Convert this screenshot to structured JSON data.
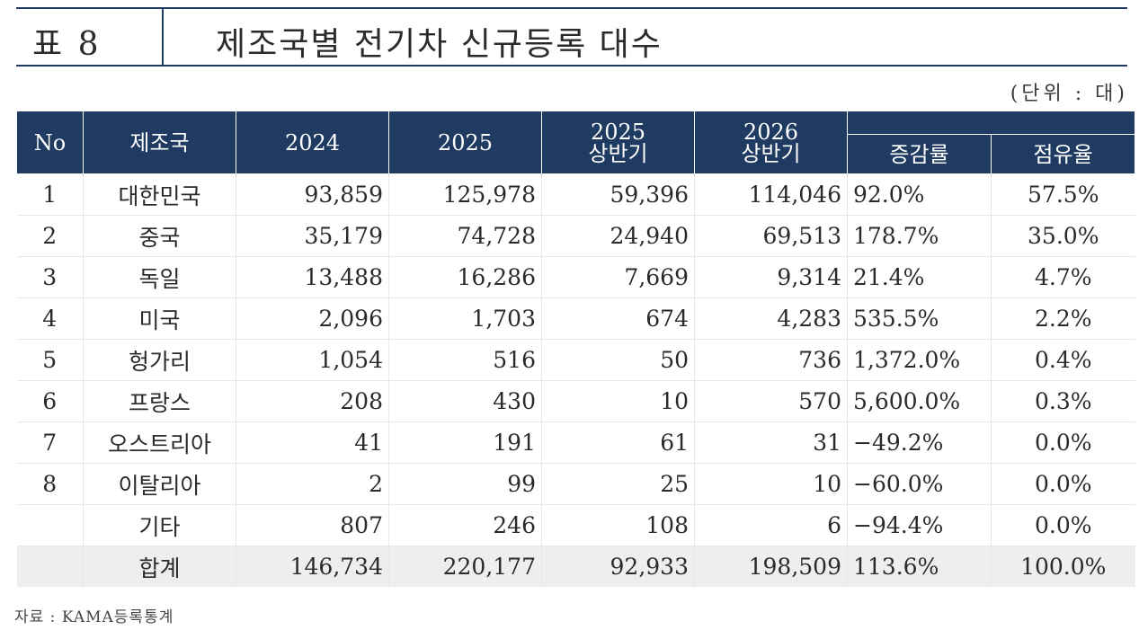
{
  "title": {
    "number": "표 8",
    "text": "제조국별 전기차 신규등록 대수"
  },
  "unit": "(단위 : 대)",
  "headers": {
    "no": "No",
    "maker": "제조국",
    "y2024": "2024",
    "y2025": "2025",
    "h2025_line1": "2025",
    "h2025_line2": "상반기",
    "h2026_line1": "2026",
    "h2026_line2": "상반기",
    "growth": "증감률",
    "share": "점유율"
  },
  "rows": [
    {
      "no": "1",
      "country": "대한민국",
      "y2024": "93,859",
      "y2025": "125,978",
      "h2025": "59,396",
      "h2026": "114,046",
      "growth": "92.0%",
      "share": "57.5%"
    },
    {
      "no": "2",
      "country": "중국",
      "y2024": "35,179",
      "y2025": "74,728",
      "h2025": "24,940",
      "h2026": "69,513",
      "growth": "178.7%",
      "share": "35.0%"
    },
    {
      "no": "3",
      "country": "독일",
      "y2024": "13,488",
      "y2025": "16,286",
      "h2025": "7,669",
      "h2026": "9,314",
      "growth": "21.4%",
      "share": "4.7%"
    },
    {
      "no": "4",
      "country": "미국",
      "y2024": "2,096",
      "y2025": "1,703",
      "h2025": "674",
      "h2026": "4,283",
      "growth": "535.5%",
      "share": "2.2%"
    },
    {
      "no": "5",
      "country": "헝가리",
      "y2024": "1,054",
      "y2025": "516",
      "h2025": "50",
      "h2026": "736",
      "growth": "1,372.0%",
      "share": "0.4%"
    },
    {
      "no": "6",
      "country": "프랑스",
      "y2024": "208",
      "y2025": "430",
      "h2025": "10",
      "h2026": "570",
      "growth": "5,600.0%",
      "share": "0.3%"
    },
    {
      "no": "7",
      "country": "오스트리아",
      "y2024": "41",
      "y2025": "191",
      "h2025": "61",
      "h2026": "31",
      "growth": "−49.2%",
      "share": "0.0%"
    },
    {
      "no": "8",
      "country": "이탈리아",
      "y2024": "2",
      "y2025": "99",
      "h2025": "25",
      "h2026": "10",
      "growth": "−60.0%",
      "share": "0.0%"
    },
    {
      "no": "",
      "country": "기타",
      "y2024": "807",
      "y2025": "246",
      "h2025": "108",
      "h2026": "6",
      "growth": "−94.4%",
      "share": "0.0%"
    }
  ],
  "total": {
    "no": "",
    "country": "합계",
    "y2024": "146,734",
    "y2025": "220,177",
    "h2025": "92,933",
    "h2026": "198,509",
    "growth": "113.6%",
    "share": "100.0%"
  },
  "source": "자료 : KAMA등록통계"
}
